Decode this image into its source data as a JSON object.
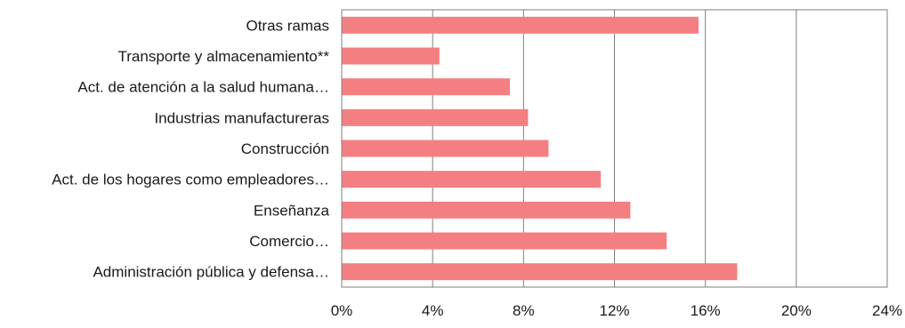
{
  "chart_data": {
    "type": "bar",
    "orientation": "horizontal",
    "categories": [
      "Otras ramas",
      "Transporte y almacenamiento**",
      "Act. de atención a la salud humana…",
      "Industrias manufactureras",
      "Construcción",
      "Act. de los hogares como empleadores…",
      "Enseñanza",
      "Comercio…",
      "Administración pública y defensa…"
    ],
    "values": [
      15.7,
      4.3,
      7.4,
      8.2,
      9.1,
      11.4,
      12.7,
      14.3,
      17.4
    ],
    "title": "",
    "xlabel": "",
    "ylabel": "",
    "xlim": [
      0,
      24
    ],
    "x_ticks": [
      0,
      4,
      8,
      12,
      16,
      20,
      24
    ],
    "tick_format": "{v}%",
    "grid": true,
    "legend": "none",
    "bar_color": "#f47f82",
    "grid_color": "#7f7f7f"
  }
}
